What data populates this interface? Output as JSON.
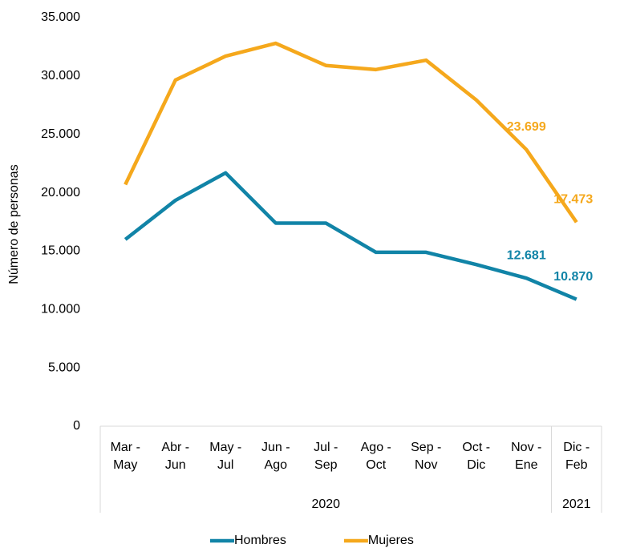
{
  "chart_data": {
    "type": "line",
    "ylabel": "Número de personas",
    "categories": [
      "Mar -\nMay",
      "Abr -\nJun",
      "May -\nJul",
      "Jun -\nAgo",
      "Jul -\nSep",
      "Ago -\nOct",
      "Sep -\nNov",
      "Oct -\nDic",
      "Nov -\nEne",
      "Dic -\nFeb"
    ],
    "groups": [
      {
        "label": "2020",
        "span": 9
      },
      {
        "label": "2021",
        "span": 1
      }
    ],
    "series": [
      {
        "name": "Hombres",
        "color": "#1184a7",
        "values": [
          16000,
          19350,
          21700,
          17400,
          17400,
          14900,
          14900,
          13850,
          12681,
          10870
        ],
        "value_labels": [
          null,
          null,
          null,
          null,
          null,
          null,
          null,
          null,
          "12.681",
          "10.870"
        ]
      },
      {
        "name": "Mujeres",
        "color": "#f5a81c",
        "values": [
          20700,
          29650,
          31700,
          32800,
          30900,
          30550,
          31350,
          27950,
          23699,
          17473
        ],
        "value_labels": [
          null,
          null,
          null,
          null,
          null,
          null,
          null,
          null,
          "23.699",
          "17.473"
        ]
      }
    ],
    "ylim": [
      0,
      35000
    ],
    "yticks": [
      0,
      {
        "value": 5000,
        "label": "5.000"
      },
      {
        "value": 10000,
        "label": "10.000"
      },
      {
        "value": 15000,
        "label": "15.000"
      },
      {
        "value": 20000,
        "label": "20.000"
      },
      {
        "value": 25000,
        "label": "25.000"
      },
      {
        "value": 30000,
        "label": "30.000"
      },
      {
        "value": 35000,
        "label": "35.000"
      }
    ],
    "legend": "bottom"
  }
}
